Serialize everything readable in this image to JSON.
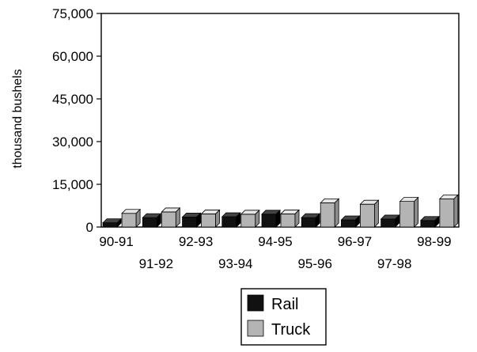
{
  "chart_data": {
    "type": "bar",
    "title": "",
    "xlabel": "",
    "ylabel": "thousand bushels",
    "ylim": [
      0,
      75000
    ],
    "yticks": [
      0,
      15000,
      30000,
      45000,
      60000,
      75000
    ],
    "ytick_labels": [
      "0",
      "15,000",
      "30,000",
      "45,000",
      "60,000",
      "75,000"
    ],
    "categories": [
      "90-91",
      "91-92",
      "92-93",
      "93-94",
      "94-95",
      "95-96",
      "96-97",
      "97-98",
      "98-99"
    ],
    "series": [
      {
        "name": "Rail",
        "color": "#111111",
        "values": [
          1500,
          3300,
          3500,
          3600,
          4500,
          3300,
          2500,
          2800,
          2300
        ]
      },
      {
        "name": "Truck",
        "color": "#b4b4b4",
        "values": [
          4800,
          5300,
          4600,
          4500,
          4600,
          8500,
          8000,
          9000,
          9900
        ]
      }
    ],
    "legend": {
      "position": "bottom-center",
      "entries": [
        "Rail",
        "Truck"
      ]
    },
    "grid": false,
    "style": "3d-bar"
  }
}
